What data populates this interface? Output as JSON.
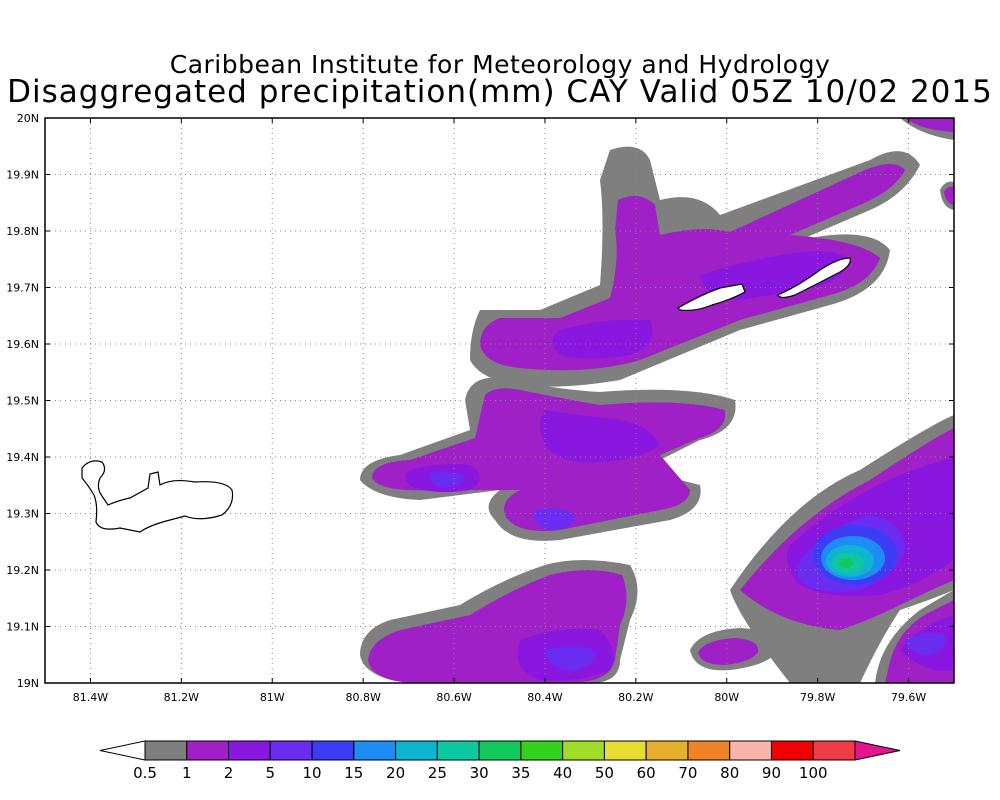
{
  "header": {
    "title_line1": "Caribbean Institute for Meteorology and Hydrology",
    "title_line2": "Disaggregated precipitation(mm) CAY Valid 05Z 10/02 2015"
  },
  "map": {
    "lon_range": [
      -81.5,
      -79.5
    ],
    "lat_range": [
      19.0,
      20.0
    ],
    "grid": true,
    "x_tick_labels": [
      "81.4W",
      "81.2W",
      "81W",
      "80.8W",
      "80.6W",
      "80.4W",
      "80.2W",
      "80W",
      "79.8W",
      "79.6W"
    ],
    "y_tick_labels": [
      "19N",
      "19.1N",
      "19.2N",
      "19.3N",
      "19.4N",
      "19.5N",
      "19.6N",
      "19.7N",
      "19.8N",
      "19.9N",
      "20N"
    ],
    "islands": [
      "Grand Cayman",
      "Little Cayman",
      "Cayman Brac"
    ]
  },
  "legend": {
    "levels": [
      "0.5",
      "1",
      "2",
      "5",
      "10",
      "15",
      "20",
      "25",
      "30",
      "35",
      "40",
      "50",
      "60",
      "70",
      "80",
      "90",
      "100"
    ],
    "colors": [
      "#ffffff",
      "#7f7f7f",
      "#a020c8",
      "#8a17e0",
      "#6a2cf0",
      "#3c3cf5",
      "#1e8cf5",
      "#0fb4d0",
      "#0dc8a0",
      "#12c85a",
      "#32d21e",
      "#a0dc28",
      "#e6dc32",
      "#e6af2d",
      "#f08228",
      "#fab4aa",
      "#f00000",
      "#f03c46",
      "#e6148c"
    ]
  }
}
